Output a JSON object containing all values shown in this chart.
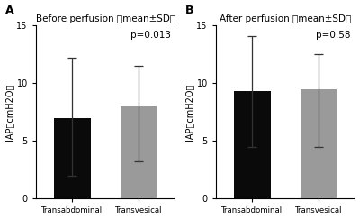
{
  "panel_A": {
    "label": "A",
    "title": "Before perfusion （mean±SD）",
    "categories": [
      "Transabdominal",
      "Transvesical"
    ],
    "means": [
      7.0,
      8.0
    ],
    "errors_low": [
      5.0,
      4.8
    ],
    "errors_high": [
      5.2,
      3.5
    ],
    "p_text": "p=0.013",
    "bar_colors": [
      "#0a0a0a",
      "#9a9a9a"
    ],
    "ylim": [
      0,
      15
    ],
    "yticks": [
      0,
      5,
      10,
      15
    ],
    "ylabel": "IAP（cmH2O）"
  },
  "panel_B": {
    "label": "B",
    "title": "After perfusion （mean±SD）",
    "categories": [
      "Transabdominal",
      "Transvesical"
    ],
    "means": [
      9.3,
      9.5
    ],
    "errors_low": [
      4.8,
      5.0
    ],
    "errors_high": [
      4.8,
      3.0
    ],
    "p_text": "p=0.58",
    "bar_colors": [
      "#0a0a0a",
      "#9a9a9a"
    ],
    "ylim": [
      0,
      15
    ],
    "yticks": [
      0,
      5,
      10,
      15
    ],
    "ylabel": "IAP（cmH2O）"
  },
  "background_color": "#ffffff",
  "fig_width": 4.0,
  "fig_height": 2.44,
  "dpi": 100
}
